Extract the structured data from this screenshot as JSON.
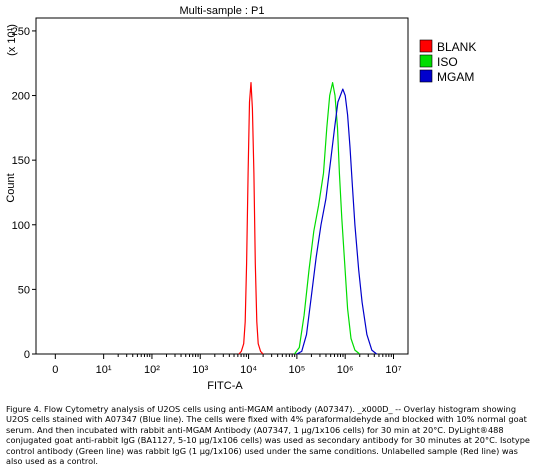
{
  "chart_data": {
    "type": "line",
    "title": "Multi-sample : P1",
    "xlabel": "FITC-A",
    "ylabel": "Count",
    "y_multiplier": "(x 10¹)",
    "x_scale": "log",
    "x_tick_labels": [
      "0",
      "10¹",
      "10²",
      "10³",
      "10⁴",
      "10⁵",
      "10⁶",
      "10⁷"
    ],
    "x_tick_positions": [
      0,
      1,
      2,
      3,
      4,
      5,
      6,
      7
    ],
    "xlim": [
      -0.4,
      7.3
    ],
    "ylim": [
      0,
      260
    ],
    "y_ticks": [
      0,
      50,
      100,
      150,
      200,
      250
    ],
    "y_tick_labels": [
      "0",
      "50",
      "100",
      "150",
      "200",
      "250"
    ],
    "grid": false,
    "legend_position": "top-right",
    "series": [
      {
        "name": "BLANK",
        "color": "#ff0000",
        "x": [
          3.8,
          3.85,
          3.9,
          3.93,
          3.96,
          3.99,
          4.02,
          4.05,
          4.08,
          4.11,
          4.14,
          4.17,
          4.2,
          4.25,
          4.3
        ],
        "y": [
          0,
          2,
          8,
          25,
          70,
          140,
          195,
          210,
          190,
          140,
          70,
          25,
          8,
          2,
          0
        ]
      },
      {
        "name": "ISO",
        "color": "#00dd00",
        "x": [
          4.95,
          5.05,
          5.15,
          5.25,
          5.35,
          5.45,
          5.55,
          5.62,
          5.68,
          5.74,
          5.79,
          5.84,
          5.88,
          5.93,
          5.99,
          6.05,
          6.12,
          6.2,
          6.3
        ],
        "y": [
          0,
          5,
          30,
          65,
          95,
          115,
          140,
          175,
          200,
          210,
          200,
          175,
          140,
          105,
          70,
          35,
          12,
          3,
          0
        ]
      },
      {
        "name": "MGAM",
        "color": "#0000cc",
        "x": [
          5.0,
          5.1,
          5.2,
          5.3,
          5.4,
          5.5,
          5.6,
          5.7,
          5.78,
          5.85,
          5.9,
          5.95,
          6.0,
          6.05,
          6.1,
          6.15,
          6.2,
          6.28,
          6.35,
          6.45,
          6.55,
          6.65
        ],
        "y": [
          0,
          2,
          15,
          45,
          75,
          100,
          120,
          150,
          175,
          195,
          200,
          205,
          200,
          185,
          160,
          130,
          100,
          65,
          40,
          15,
          3,
          0
        ]
      }
    ]
  },
  "caption": "Figure 4. Flow Cytometry analysis of U2OS cells using anti-MGAM antibody (A07347). _x000D_ -- Overlay histogram showing U2OS cells stained with A07347 (Blue line). The cells were fixed with 4% paraformaldehyde and blocked with 10% normal goat serum. And then incubated with rabbit anti-MGAM Antibody (A07347, 1 µg/1x106 cells) for 30 min at 20°C. DyLight®488 conjugated goat anti-rabbit IgG (BA1127, 5-10 µg/1x106 cells) was used as secondary antibody for 30 minutes at 20°C. Isotype control antibody (Green line) was rabbit IgG (1 µg/1x106) used under the same conditions. Unlabelled sample (Red line) was also used as a control."
}
